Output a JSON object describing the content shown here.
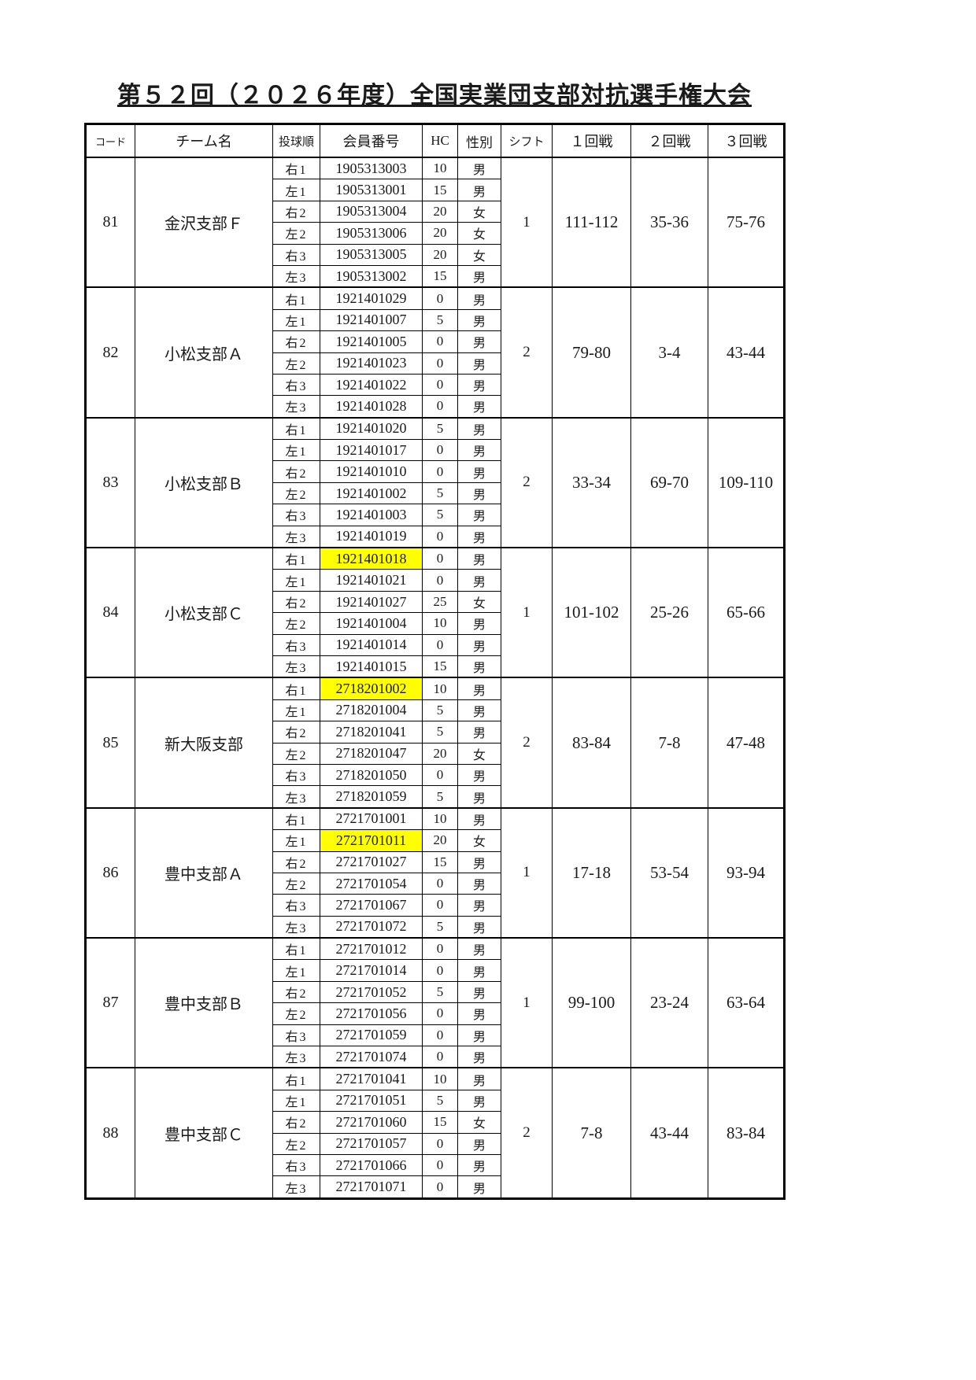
{
  "title": "第５２回（２０２６年度）全国実業団支部対抗選手権大会",
  "colors": {
    "highlight": "#ffff00",
    "border": "#000000",
    "text": "#1a1a1a"
  },
  "table": {
    "headers": [
      "コード",
      "チーム名",
      "投球順",
      "会員番号",
      "HC",
      "性別",
      "シフト",
      "１回戦",
      "２回戦",
      "３回戦"
    ],
    "teams": [
      {
        "code": "81",
        "name": "金沢支部Ｆ",
        "shift": "1",
        "round1": "111-112",
        "round2": "35-36",
        "round3": "75-76",
        "players": [
          {
            "order": "右1",
            "member": "1905313003",
            "hc": "10",
            "sex": "男",
            "highlight": false
          },
          {
            "order": "左1",
            "member": "1905313001",
            "hc": "15",
            "sex": "男",
            "highlight": false
          },
          {
            "order": "右2",
            "member": "1905313004",
            "hc": "20",
            "sex": "女",
            "highlight": false
          },
          {
            "order": "左2",
            "member": "1905313006",
            "hc": "20",
            "sex": "女",
            "highlight": false
          },
          {
            "order": "右3",
            "member": "1905313005",
            "hc": "20",
            "sex": "女",
            "highlight": false
          },
          {
            "order": "左3",
            "member": "1905313002",
            "hc": "15",
            "sex": "男",
            "highlight": false
          }
        ]
      },
      {
        "code": "82",
        "name": "小松支部Ａ",
        "shift": "2",
        "round1": "79-80",
        "round2": "3-4",
        "round3": "43-44",
        "players": [
          {
            "order": "右1",
            "member": "1921401029",
            "hc": "0",
            "sex": "男",
            "highlight": false
          },
          {
            "order": "左1",
            "member": "1921401007",
            "hc": "5",
            "sex": "男",
            "highlight": false
          },
          {
            "order": "右2",
            "member": "1921401005",
            "hc": "0",
            "sex": "男",
            "highlight": false
          },
          {
            "order": "左2",
            "member": "1921401023",
            "hc": "0",
            "sex": "男",
            "highlight": false
          },
          {
            "order": "右3",
            "member": "1921401022",
            "hc": "0",
            "sex": "男",
            "highlight": false
          },
          {
            "order": "左3",
            "member": "1921401028",
            "hc": "0",
            "sex": "男",
            "highlight": false
          }
        ]
      },
      {
        "code": "83",
        "name": "小松支部Ｂ",
        "shift": "2",
        "round1": "33-34",
        "round2": "69-70",
        "round3": "109-110",
        "players": [
          {
            "order": "右1",
            "member": "1921401020",
            "hc": "5",
            "sex": "男",
            "highlight": false
          },
          {
            "order": "左1",
            "member": "1921401017",
            "hc": "0",
            "sex": "男",
            "highlight": false
          },
          {
            "order": "右2",
            "member": "1921401010",
            "hc": "0",
            "sex": "男",
            "highlight": false
          },
          {
            "order": "左2",
            "member": "1921401002",
            "hc": "5",
            "sex": "男",
            "highlight": false
          },
          {
            "order": "右3",
            "member": "1921401003",
            "hc": "5",
            "sex": "男",
            "highlight": false
          },
          {
            "order": "左3",
            "member": "1921401019",
            "hc": "0",
            "sex": "男",
            "highlight": false
          }
        ]
      },
      {
        "code": "84",
        "name": "小松支部Ｃ",
        "shift": "1",
        "round1": "101-102",
        "round2": "25-26",
        "round3": "65-66",
        "players": [
          {
            "order": "右1",
            "member": "1921401018",
            "hc": "0",
            "sex": "男",
            "highlight": true
          },
          {
            "order": "左1",
            "member": "1921401021",
            "hc": "0",
            "sex": "男",
            "highlight": false
          },
          {
            "order": "右2",
            "member": "1921401027",
            "hc": "25",
            "sex": "女",
            "highlight": false
          },
          {
            "order": "左2",
            "member": "1921401004",
            "hc": "10",
            "sex": "男",
            "highlight": false
          },
          {
            "order": "右3",
            "member": "1921401014",
            "hc": "0",
            "sex": "男",
            "highlight": false
          },
          {
            "order": "左3",
            "member": "1921401015",
            "hc": "15",
            "sex": "男",
            "highlight": false
          }
        ]
      },
      {
        "code": "85",
        "name": "新大阪支部",
        "shift": "2",
        "round1": "83-84",
        "round2": "7-8",
        "round3": "47-48",
        "players": [
          {
            "order": "右1",
            "member": "2718201002",
            "hc": "10",
            "sex": "男",
            "highlight": true
          },
          {
            "order": "左1",
            "member": "2718201004",
            "hc": "5",
            "sex": "男",
            "highlight": false
          },
          {
            "order": "右2",
            "member": "2718201041",
            "hc": "5",
            "sex": "男",
            "highlight": false
          },
          {
            "order": "左2",
            "member": "2718201047",
            "hc": "20",
            "sex": "女",
            "highlight": false
          },
          {
            "order": "右3",
            "member": "2718201050",
            "hc": "0",
            "sex": "男",
            "highlight": false
          },
          {
            "order": "左3",
            "member": "2718201059",
            "hc": "5",
            "sex": "男",
            "highlight": false
          }
        ]
      },
      {
        "code": "86",
        "name": "豊中支部Ａ",
        "shift": "1",
        "round1": "17-18",
        "round2": "53-54",
        "round3": "93-94",
        "players": [
          {
            "order": "右1",
            "member": "2721701001",
            "hc": "10",
            "sex": "男",
            "highlight": false
          },
          {
            "order": "左1",
            "member": "2721701011",
            "hc": "20",
            "sex": "女",
            "highlight": true
          },
          {
            "order": "右2",
            "member": "2721701027",
            "hc": "15",
            "sex": "男",
            "highlight": false
          },
          {
            "order": "左2",
            "member": "2721701054",
            "hc": "0",
            "sex": "男",
            "highlight": false
          },
          {
            "order": "右3",
            "member": "2721701067",
            "hc": "0",
            "sex": "男",
            "highlight": false
          },
          {
            "order": "左3",
            "member": "2721701072",
            "hc": "5",
            "sex": "男",
            "highlight": false
          }
        ]
      },
      {
        "code": "87",
        "name": "豊中支部Ｂ",
        "shift": "1",
        "round1": "99-100",
        "round2": "23-24",
        "round3": "63-64",
        "players": [
          {
            "order": "右1",
            "member": "2721701012",
            "hc": "0",
            "sex": "男",
            "highlight": false
          },
          {
            "order": "左1",
            "member": "2721701014",
            "hc": "0",
            "sex": "男",
            "highlight": false
          },
          {
            "order": "右2",
            "member": "2721701052",
            "hc": "5",
            "sex": "男",
            "highlight": false
          },
          {
            "order": "左2",
            "member": "2721701056",
            "hc": "0",
            "sex": "男",
            "highlight": false
          },
          {
            "order": "右3",
            "member": "2721701059",
            "hc": "0",
            "sex": "男",
            "highlight": false
          },
          {
            "order": "左3",
            "member": "2721701074",
            "hc": "0",
            "sex": "男",
            "highlight": false
          }
        ]
      },
      {
        "code": "88",
        "name": "豊中支部Ｃ",
        "shift": "2",
        "round1": "7-8",
        "round2": "43-44",
        "round3": "83-84",
        "players": [
          {
            "order": "右1",
            "member": "2721701041",
            "hc": "10",
            "sex": "男",
            "highlight": false
          },
          {
            "order": "左1",
            "member": "2721701051",
            "hc": "5",
            "sex": "男",
            "highlight": false
          },
          {
            "order": "右2",
            "member": "2721701060",
            "hc": "15",
            "sex": "女",
            "highlight": false
          },
          {
            "order": "左2",
            "member": "2721701057",
            "hc": "0",
            "sex": "男",
            "highlight": false
          },
          {
            "order": "右3",
            "member": "2721701066",
            "hc": "0",
            "sex": "男",
            "highlight": false
          },
          {
            "order": "左3",
            "member": "2721701071",
            "hc": "0",
            "sex": "男",
            "highlight": false
          }
        ]
      }
    ]
  }
}
